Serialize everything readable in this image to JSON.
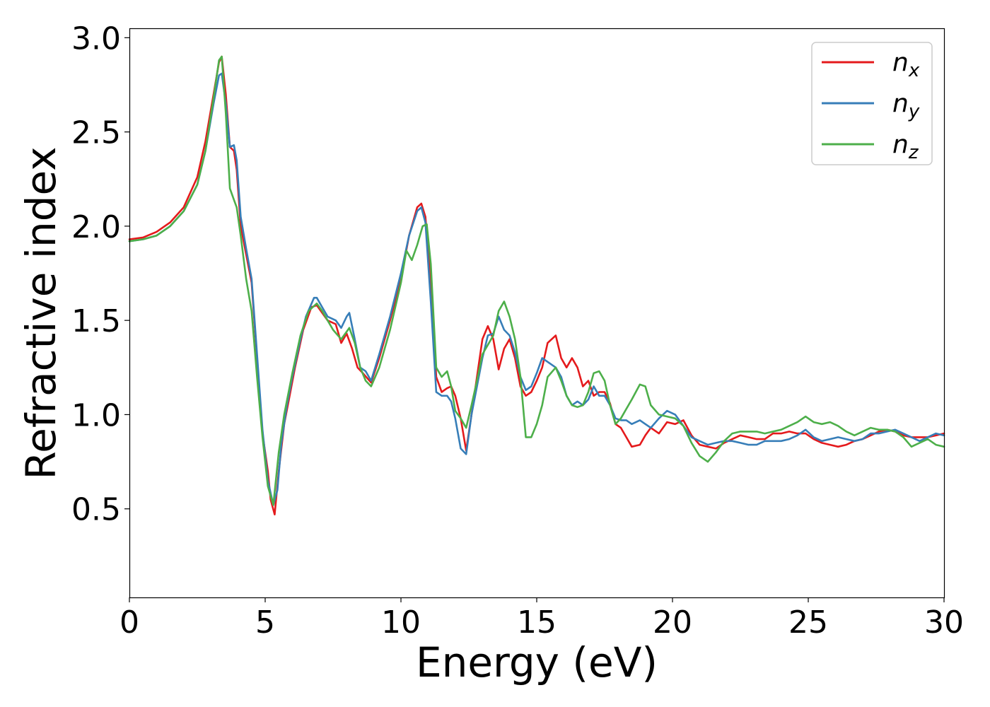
{
  "chart_data": {
    "type": "line",
    "title": "",
    "xlabel": "Energy (eV)",
    "ylabel": "Refractive index",
    "xlim": [
      0,
      30
    ],
    "ylim": [
      0.03,
      3.05
    ],
    "xticks": [
      0,
      5,
      10,
      15,
      20,
      25,
      30
    ],
    "xtick_labels": [
      "0",
      "5",
      "10",
      "15",
      "20",
      "25",
      "30"
    ],
    "yticks": [
      0.5,
      1.0,
      1.5,
      2.0,
      2.5,
      3.0
    ],
    "ytick_labels": [
      "0.5",
      "1.0",
      "1.5",
      "2.0",
      "2.5",
      "3.0"
    ],
    "grid": false,
    "legend_position": "top-right",
    "series": [
      {
        "name": "n_x",
        "legend_base": "n",
        "legend_sub": "x",
        "color": "#e41a1c",
        "x": [
          0,
          0.5,
          1,
          1.5,
          2,
          2.5,
          2.8,
          3.1,
          3.3,
          3.4,
          3.55,
          3.7,
          3.85,
          3.95,
          4.1,
          4.3,
          4.5,
          4.7,
          4.9,
          5.1,
          5.2,
          5.35,
          5.5,
          5.7,
          5.9,
          6.1,
          6.4,
          6.7,
          6.9,
          7.1,
          7.3,
          7.6,
          7.8,
          8.0,
          8.2,
          8.4,
          8.6,
          8.9,
          9.2,
          9.6,
          10.0,
          10.3,
          10.6,
          10.75,
          10.9,
          11.1,
          11.3,
          11.5,
          11.7,
          11.85,
          12.0,
          12.2,
          12.4,
          12.6,
          12.8,
          13.0,
          13.2,
          13.4,
          13.6,
          13.8,
          14.0,
          14.2,
          14.4,
          14.6,
          14.8,
          15.0,
          15.2,
          15.4,
          15.7,
          15.9,
          16.1,
          16.3,
          16.5,
          16.7,
          16.9,
          17.1,
          17.3,
          17.5,
          17.7,
          17.9,
          18.1,
          18.3,
          18.5,
          18.8,
          19.0,
          19.2,
          19.5,
          19.8,
          20.1,
          20.4,
          20.7,
          21.0,
          21.3,
          21.6,
          21.9,
          22.2,
          22.5,
          22.8,
          23.1,
          23.4,
          23.7,
          24.0,
          24.3,
          24.6,
          24.9,
          25.2,
          25.5,
          25.8,
          26.1,
          26.4,
          26.7,
          27.0,
          27.3,
          27.6,
          27.9,
          28.2,
          28.5,
          28.8,
          29.1,
          29.4,
          29.7,
          30.0
        ],
        "y": [
          1.93,
          1.94,
          1.97,
          2.02,
          2.1,
          2.26,
          2.45,
          2.7,
          2.87,
          2.9,
          2.7,
          2.42,
          2.4,
          2.3,
          2.0,
          1.85,
          1.7,
          1.3,
          0.9,
          0.7,
          0.55,
          0.47,
          0.7,
          0.95,
          1.1,
          1.25,
          1.45,
          1.57,
          1.58,
          1.54,
          1.5,
          1.48,
          1.38,
          1.43,
          1.35,
          1.25,
          1.22,
          1.17,
          1.3,
          1.5,
          1.72,
          1.95,
          2.1,
          2.12,
          2.05,
          1.7,
          1.2,
          1.12,
          1.14,
          1.15,
          1.1,
          0.98,
          0.81,
          1.0,
          1.2,
          1.4,
          1.47,
          1.4,
          1.24,
          1.35,
          1.4,
          1.3,
          1.15,
          1.1,
          1.12,
          1.18,
          1.25,
          1.38,
          1.42,
          1.3,
          1.25,
          1.3,
          1.25,
          1.15,
          1.18,
          1.1,
          1.12,
          1.12,
          1.06,
          0.95,
          0.93,
          0.88,
          0.83,
          0.84,
          0.89,
          0.93,
          0.9,
          0.96,
          0.95,
          0.97,
          0.89,
          0.84,
          0.83,
          0.82,
          0.85,
          0.87,
          0.89,
          0.88,
          0.87,
          0.87,
          0.9,
          0.9,
          0.91,
          0.9,
          0.9,
          0.87,
          0.85,
          0.84,
          0.83,
          0.84,
          0.86,
          0.87,
          0.89,
          0.91,
          0.92,
          0.91,
          0.89,
          0.88,
          0.88,
          0.88,
          0.89,
          0.9
        ]
      },
      {
        "name": "n_y",
        "legend_base": "n",
        "legend_sub": "y",
        "color": "#377eb8",
        "x": [
          0,
          0.5,
          1,
          1.5,
          2,
          2.5,
          2.8,
          3.1,
          3.3,
          3.4,
          3.55,
          3.7,
          3.85,
          3.95,
          4.1,
          4.3,
          4.5,
          4.7,
          4.9,
          5.1,
          5.3,
          5.45,
          5.6,
          5.8,
          6.0,
          6.3,
          6.5,
          6.8,
          6.9,
          7.1,
          7.3,
          7.6,
          7.8,
          8.0,
          8.1,
          8.3,
          8.5,
          8.7,
          8.9,
          9.2,
          9.6,
          10.0,
          10.3,
          10.6,
          10.75,
          10.9,
          11.1,
          11.3,
          11.5,
          11.7,
          11.85,
          12.0,
          12.2,
          12.4,
          12.6,
          12.8,
          13.0,
          13.2,
          13.4,
          13.6,
          13.8,
          14.0,
          14.2,
          14.4,
          14.6,
          14.8,
          15.0,
          15.2,
          15.4,
          15.7,
          15.9,
          16.1,
          16.3,
          16.5,
          16.7,
          16.9,
          17.1,
          17.3,
          17.5,
          17.7,
          17.9,
          18.1,
          18.3,
          18.5,
          18.8,
          19.0,
          19.2,
          19.5,
          19.8,
          20.1,
          20.4,
          20.7,
          21.0,
          21.3,
          21.6,
          21.9,
          22.2,
          22.5,
          22.8,
          23.1,
          23.4,
          23.7,
          24.0,
          24.3,
          24.6,
          24.9,
          25.2,
          25.5,
          25.8,
          26.1,
          26.4,
          26.7,
          27.0,
          27.3,
          27.6,
          27.9,
          28.2,
          28.5,
          28.8,
          29.1,
          29.4,
          29.7,
          30.0
        ],
        "y": [
          1.92,
          1.93,
          1.95,
          2.0,
          2.08,
          2.22,
          2.4,
          2.65,
          2.8,
          2.81,
          2.65,
          2.42,
          2.43,
          2.35,
          2.05,
          1.88,
          1.72,
          1.32,
          0.92,
          0.65,
          0.52,
          0.6,
          0.85,
          1.05,
          1.2,
          1.4,
          1.52,
          1.62,
          1.62,
          1.57,
          1.52,
          1.5,
          1.46,
          1.52,
          1.54,
          1.4,
          1.25,
          1.23,
          1.18,
          1.32,
          1.52,
          1.75,
          1.95,
          2.08,
          2.1,
          2.02,
          1.6,
          1.12,
          1.1,
          1.1,
          1.07,
          0.98,
          0.82,
          0.79,
          1.0,
          1.15,
          1.3,
          1.42,
          1.43,
          1.52,
          1.45,
          1.42,
          1.33,
          1.2,
          1.13,
          1.15,
          1.22,
          1.3,
          1.28,
          1.25,
          1.2,
          1.1,
          1.05,
          1.07,
          1.05,
          1.08,
          1.15,
          1.1,
          1.1,
          1.05,
          0.98,
          0.97,
          0.97,
          0.95,
          0.97,
          0.95,
          0.93,
          0.98,
          1.02,
          1.0,
          0.94,
          0.88,
          0.86,
          0.84,
          0.85,
          0.86,
          0.86,
          0.85,
          0.84,
          0.84,
          0.86,
          0.86,
          0.86,
          0.87,
          0.89,
          0.92,
          0.88,
          0.86,
          0.87,
          0.88,
          0.87,
          0.86,
          0.87,
          0.9,
          0.9,
          0.91,
          0.92,
          0.9,
          0.88,
          0.86,
          0.88,
          0.9,
          0.89
        ]
      },
      {
        "name": "n_z",
        "legend_base": "n",
        "legend_sub": "z",
        "color": "#4daf4a",
        "x": [
          0,
          0.5,
          1,
          1.5,
          2,
          2.5,
          2.8,
          3.1,
          3.3,
          3.4,
          3.55,
          3.7,
          3.85,
          3.95,
          4.1,
          4.3,
          4.5,
          4.7,
          4.9,
          5.1,
          5.3,
          5.5,
          5.7,
          6.0,
          6.3,
          6.6,
          6.9,
          7.1,
          7.3,
          7.5,
          7.8,
          8.0,
          8.1,
          8.3,
          8.5,
          8.7,
          8.9,
          9.2,
          9.6,
          10.0,
          10.2,
          10.4,
          10.6,
          10.8,
          10.95,
          11.1,
          11.3,
          11.5,
          11.7,
          11.85,
          12.0,
          12.2,
          12.4,
          12.6,
          12.8,
          13.0,
          13.2,
          13.4,
          13.6,
          13.8,
          14.0,
          14.2,
          14.4,
          14.6,
          14.8,
          15.0,
          15.2,
          15.4,
          15.7,
          15.9,
          16.1,
          16.3,
          16.5,
          16.7,
          16.9,
          17.1,
          17.3,
          17.5,
          17.7,
          17.9,
          18.1,
          18.3,
          18.5,
          18.8,
          19.0,
          19.2,
          19.5,
          19.8,
          20.1,
          20.4,
          20.7,
          21.0,
          21.3,
          21.6,
          21.9,
          22.2,
          22.5,
          22.8,
          23.1,
          23.4,
          23.7,
          24.0,
          24.3,
          24.6,
          24.9,
          25.2,
          25.5,
          25.8,
          26.1,
          26.4,
          26.7,
          27.0,
          27.3,
          27.6,
          27.9,
          28.2,
          28.5,
          28.8,
          29.1,
          29.4,
          29.7,
          30.0
        ],
        "y": [
          1.92,
          1.93,
          1.95,
          2.0,
          2.08,
          2.22,
          2.4,
          2.68,
          2.88,
          2.9,
          2.6,
          2.2,
          2.14,
          2.1,
          1.95,
          1.72,
          1.55,
          1.2,
          0.88,
          0.62,
          0.52,
          0.8,
          1.0,
          1.22,
          1.42,
          1.55,
          1.59,
          1.55,
          1.5,
          1.45,
          1.4,
          1.44,
          1.46,
          1.38,
          1.25,
          1.18,
          1.15,
          1.25,
          1.45,
          1.7,
          1.87,
          1.82,
          1.9,
          2.0,
          2.01,
          1.8,
          1.25,
          1.2,
          1.23,
          1.15,
          1.02,
          0.98,
          0.93,
          1.05,
          1.18,
          1.32,
          1.37,
          1.42,
          1.55,
          1.6,
          1.52,
          1.4,
          1.2,
          0.88,
          0.88,
          0.95,
          1.05,
          1.2,
          1.25,
          1.18,
          1.1,
          1.05,
          1.04,
          1.05,
          1.12,
          1.22,
          1.23,
          1.18,
          1.05,
          0.95,
          0.98,
          1.03,
          1.08,
          1.16,
          1.15,
          1.05,
          1.0,
          0.99,
          0.98,
          0.94,
          0.85,
          0.78,
          0.75,
          0.8,
          0.86,
          0.9,
          0.91,
          0.91,
          0.91,
          0.9,
          0.91,
          0.92,
          0.94,
          0.96,
          0.99,
          0.96,
          0.95,
          0.96,
          0.94,
          0.91,
          0.89,
          0.91,
          0.93,
          0.92,
          0.92,
          0.91,
          0.88,
          0.83,
          0.85,
          0.87,
          0.84,
          0.83
        ]
      }
    ]
  }
}
